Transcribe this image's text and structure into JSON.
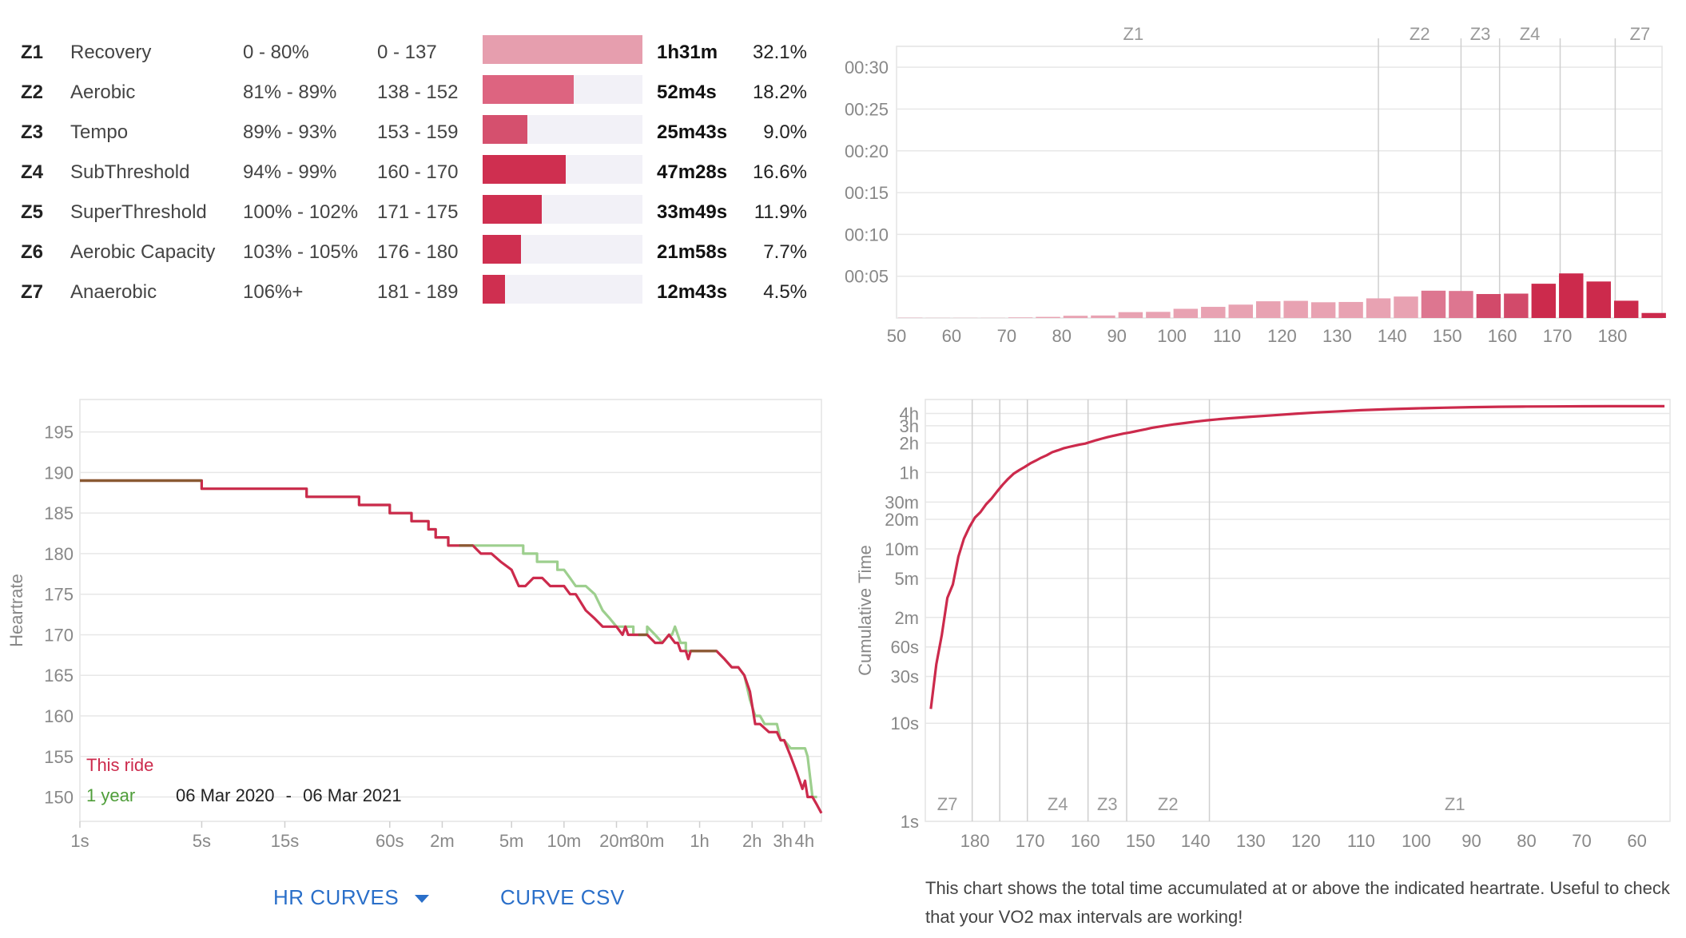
{
  "zones": [
    {
      "id": "Z1",
      "name": "Recovery",
      "pct": "0 - 80%",
      "hr": "0 - 137",
      "time": "1h31m",
      "share": "32.1%",
      "fill": 1.0,
      "color": "#e69eae"
    },
    {
      "id": "Z2",
      "name": "Aerobic",
      "pct": "81% - 89%",
      "hr": "138 - 152",
      "time": "52m4s",
      "share": "18.2%",
      "fill": 0.57,
      "color": "#dd6480"
    },
    {
      "id": "Z3",
      "name": "Tempo",
      "pct": "89% - 93%",
      "hr": "153 - 159",
      "time": "25m43s",
      "share": "9.0%",
      "fill": 0.28,
      "color": "#d5506e"
    },
    {
      "id": "Z4",
      "name": "SubThreshold",
      "pct": "94% - 99%",
      "hr": "160 - 170",
      "time": "47m28s",
      "share": "16.6%",
      "fill": 0.52,
      "color": "#cf2f50"
    },
    {
      "id": "Z5",
      "name": "SuperThreshold",
      "pct": "100% - 102%",
      "hr": "171 - 175",
      "time": "33m49s",
      "share": "11.9%",
      "fill": 0.37,
      "color": "#cf2f50"
    },
    {
      "id": "Z6",
      "name": "Aerobic Capacity",
      "pct": "103% - 105%",
      "hr": "176 - 180",
      "time": "21m58s",
      "share": "7.7%",
      "fill": 0.24,
      "color": "#cf2f50"
    },
    {
      "id": "Z7",
      "name": "Anaerobic",
      "pct": "106%+",
      "hr": "181 - 189",
      "time": "12m43s",
      "share": "4.5%",
      "fill": 0.14,
      "color": "#cf2f50"
    }
  ],
  "chart_data": [
    {
      "type": "bar",
      "title": "",
      "x": [
        50,
        55,
        60,
        65,
        70,
        75,
        80,
        85,
        90,
        95,
        100,
        105,
        110,
        115,
        120,
        125,
        130,
        135,
        140,
        145,
        150,
        155,
        160,
        165,
        170,
        175,
        180,
        185
      ],
      "values_seconds": [
        2,
        1,
        1,
        1,
        4,
        8,
        16,
        18,
        42,
        44,
        66,
        80,
        96,
        120,
        123,
        113,
        115,
        141,
        154,
        196,
        194,
        172,
        175,
        246,
        320,
        262,
        124,
        36
      ],
      "colors": [
        "#e8a2b2",
        "#e8a2b2",
        "#e8a2b2",
        "#e8a2b2",
        "#e8a2b2",
        "#e8a2b2",
        "#e8a2b2",
        "#e8a2b2",
        "#e8a2b2",
        "#e8a2b2",
        "#e8a2b2",
        "#e8a2b2",
        "#e8a2b2",
        "#e8a2b2",
        "#e8a2b2",
        "#e8a2b2",
        "#e8a2b2",
        "#e8a2b2",
        "#e8a2b2",
        "#dd7690",
        "#dd7690",
        "#d24a6a",
        "#d24a6a",
        "#cc2a4c",
        "#cc2a4c",
        "#cc2a4c",
        "#cc2a4c",
        "#cc2a4c"
      ],
      "xticks": [
        50,
        60,
        70,
        80,
        90,
        100,
        110,
        120,
        130,
        140,
        150,
        160,
        170,
        180
      ],
      "yticks": [
        {
          "v": 300,
          "label": "00:05"
        },
        {
          "v": 600,
          "label": "00:10"
        },
        {
          "v": 900,
          "label": "00:15"
        },
        {
          "v": 1200,
          "label": "00:20"
        },
        {
          "v": 1500,
          "label": "00:25"
        },
        {
          "v": 1800,
          "label": "00:30"
        }
      ],
      "ylim": [
        0,
        1950
      ],
      "xlim": [
        50,
        189
      ],
      "zone_lines": [
        137.5,
        152.5,
        159.5,
        170.5,
        180.5
      ],
      "zone_labels": [
        {
          "label": "Z1",
          "x": 93
        },
        {
          "label": "Z2",
          "x": 145
        },
        {
          "label": "Z3",
          "x": 156
        },
        {
          "label": "Z4",
          "x": 165
        },
        {
          "label": "Z7",
          "x": 185
        }
      ]
    },
    {
      "type": "line",
      "title": "",
      "ylabel": "Heartrate",
      "xscale": "log",
      "xlim": [
        1,
        18000
      ],
      "ylim": [
        147,
        199
      ],
      "yticks": [
        150,
        155,
        160,
        165,
        170,
        175,
        180,
        185,
        190,
        195
      ],
      "xticks": [
        {
          "v": 1,
          "label": "1s"
        },
        {
          "v": 5,
          "label": "5s"
        },
        {
          "v": 15,
          "label": "15s"
        },
        {
          "v": 60,
          "label": "60s"
        },
        {
          "v": 120,
          "label": "2m"
        },
        {
          "v": 300,
          "label": "5m"
        },
        {
          "v": 600,
          "label": "10m"
        },
        {
          "v": 1200,
          "label": "20m"
        },
        {
          "v": 1800,
          "label": "30m"
        },
        {
          "v": 3600,
          "label": "1h"
        },
        {
          "v": 7200,
          "label": "2h"
        },
        {
          "v": 10800,
          "label": "3h"
        },
        {
          "v": 14400,
          "label": "4h"
        }
      ],
      "series": [
        {
          "name": "1 year",
          "color": "#9dcf8e",
          "x": [
            1,
            5,
            5,
            20,
            20,
            40,
            40,
            60,
            60,
            80,
            80,
            100,
            100,
            110,
            110,
            130,
            130,
            150,
            150,
            250,
            300,
            300,
            350,
            350,
            420,
            420,
            480,
            480,
            550,
            550,
            600,
            650,
            700,
            750,
            800,
            800,
            900,
            900,
            1000,
            1000,
            1100,
            1200,
            1300,
            1300,
            1500,
            1500,
            1600,
            1700,
            1800,
            1800,
            2000,
            2000,
            2200,
            2400,
            2500,
            2600,
            2800,
            3000,
            3000,
            3500,
            4000,
            4500,
            5000,
            5500,
            6000,
            6500,
            7000,
            7500,
            8000,
            8500,
            9000,
            10000,
            10500,
            11000,
            12000,
            13000,
            14000,
            14500,
            15000,
            16000,
            17000
          ],
          "y": [
            189,
            189,
            188,
            188,
            187,
            187,
            186,
            186,
            185,
            185,
            184,
            184,
            183,
            183,
            182,
            182,
            181,
            181,
            181,
            181,
            181,
            181,
            181,
            180,
            180,
            179,
            179,
            179,
            179,
            178,
            178,
            177,
            176,
            176,
            176,
            176,
            175,
            175,
            173,
            173,
            172,
            171,
            171,
            171,
            171,
            170,
            170,
            170,
            170,
            171,
            170,
            170,
            169,
            170,
            170,
            171,
            169,
            169,
            168,
            168,
            168,
            168,
            167,
            166,
            166,
            165,
            162,
            160,
            160,
            159,
            159,
            159,
            157,
            157,
            156,
            156,
            156,
            156,
            155,
            150,
            150
          ]
        },
        {
          "name": "This ride",
          "color": "#cc2a4c",
          "x": [
            1,
            5,
            5,
            20,
            20,
            40,
            40,
            60,
            60,
            80,
            80,
            100,
            100,
            110,
            110,
            130,
            130,
            150,
            150,
            180,
            200,
            230,
            260,
            260,
            300,
            330,
            360,
            400,
            420,
            450,
            500,
            560,
            600,
            650,
            700,
            800,
            900,
            1000,
            1000,
            1100,
            1200,
            1300,
            1350,
            1400,
            1500,
            1600,
            1700,
            1800,
            2000,
            2200,
            2400,
            2600,
            2700,
            2800,
            3000,
            3100,
            3200,
            3400,
            3600,
            4000,
            4500,
            5000,
            5500,
            6000,
            6500,
            7000,
            7500,
            8000,
            9000,
            10000,
            10500,
            11000,
            12000,
            13000,
            14000,
            14500,
            15000,
            16000,
            17000,
            18000
          ],
          "y": [
            189,
            189,
            188,
            188,
            187,
            187,
            186,
            186,
            185,
            185,
            184,
            184,
            183,
            183,
            182,
            182,
            181,
            181,
            181,
            181,
            180,
            180,
            179,
            179,
            178,
            176,
            176,
            177,
            177,
            177,
            176,
            176,
            176,
            175,
            175,
            173,
            172,
            171,
            171,
            171,
            171,
            170,
            171,
            170,
            170,
            170,
            170,
            170,
            169,
            169,
            170,
            169,
            169,
            168,
            168,
            167,
            168,
            168,
            168,
            168,
            168,
            167,
            166,
            166,
            165,
            163,
            159,
            159,
            158,
            158,
            157,
            157,
            155,
            153,
            151,
            152,
            150,
            150,
            149,
            148
          ]
        }
      ],
      "legend": [
        {
          "label": "This ride",
          "color": "#cc2a4c"
        },
        {
          "label": "1 year",
          "color": "#4f9e3a"
        }
      ],
      "range_from": "06 Mar 2020",
      "range_sep": "-",
      "range_to": "06 Mar 2021"
    },
    {
      "type": "line",
      "title": "",
      "ylabel": "Cumulative Time",
      "yscale": "log",
      "xlim": [
        189,
        54
      ],
      "ylim": [
        1,
        20000
      ],
      "xticks": [
        180,
        170,
        160,
        150,
        140,
        130,
        120,
        110,
        100,
        90,
        80,
        70,
        60
      ],
      "yticks": [
        {
          "v": 1,
          "label": "1s"
        },
        {
          "v": 10,
          "label": "10s"
        },
        {
          "v": 30,
          "label": "30s"
        },
        {
          "v": 60,
          "label": "60s"
        },
        {
          "v": 120,
          "label": "2m"
        },
        {
          "v": 300,
          "label": "5m"
        },
        {
          "v": 600,
          "label": "10m"
        },
        {
          "v": 1200,
          "label": "20m"
        },
        {
          "v": 1800,
          "label": "30m"
        },
        {
          "v": 3600,
          "label": "1h"
        },
        {
          "v": 7200,
          "label": "2h"
        },
        {
          "v": 10800,
          "label": "3h"
        },
        {
          "v": 14400,
          "label": "4h"
        }
      ],
      "zone_lines": [
        180.5,
        175.5,
        170.5,
        159.5,
        152.5,
        137.5
      ],
      "zone_labels": [
        {
          "label": "Z7",
          "x": 185
        },
        {
          "label": "Z4",
          "x": 165
        },
        {
          "label": "Z3",
          "x": 156
        },
        {
          "label": "Z2",
          "x": 145
        },
        {
          "label": "Z1",
          "x": 93
        }
      ],
      "series": [
        {
          "name": "",
          "color": "#cc2a4c",
          "x": [
            188,
            187,
            186,
            185,
            184,
            183,
            182,
            181,
            180,
            179,
            178,
            177,
            176,
            175,
            174,
            173,
            172,
            171,
            170,
            169,
            168,
            167,
            166,
            165,
            164,
            163,
            162,
            161,
            160,
            159,
            158,
            157,
            156,
            155,
            154,
            153,
            152,
            151,
            150,
            149,
            148,
            146,
            144,
            142,
            140,
            138,
            136,
            134,
            132,
            130,
            126,
            122,
            118,
            114,
            110,
            105,
            100,
            95,
            90,
            85,
            80,
            75,
            70,
            65,
            60,
            55
          ],
          "y": [
            14,
            40,
            80,
            190,
            260,
            500,
            760,
            1000,
            1250,
            1420,
            1700,
            1950,
            2300,
            2700,
            3100,
            3500,
            3800,
            4100,
            4450,
            4750,
            5100,
            5400,
            5800,
            6050,
            6350,
            6550,
            6750,
            6950,
            7100,
            7400,
            7700,
            7980,
            8250,
            8500,
            8750,
            9000,
            9200,
            9450,
            9700,
            9950,
            10250,
            10700,
            11150,
            11500,
            11900,
            12250,
            12550,
            12850,
            13100,
            13350,
            13800,
            14300,
            14750,
            15150,
            15550,
            15950,
            16250,
            16500,
            16700,
            16850,
            16950,
            17000,
            17050,
            17080,
            17100,
            17100
          ]
        }
      ]
    }
  ],
  "buttons": {
    "hr_curves": "HR CURVES",
    "curve_csv": "CURVE CSV"
  },
  "note": "This chart shows the total time accumulated at or above the indicated heartrate. Useful to check that your VO2 max intervals are working!"
}
